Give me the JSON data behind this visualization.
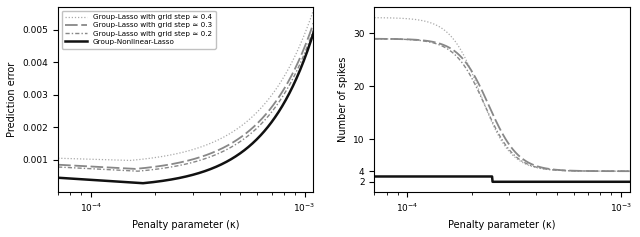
{
  "xlabel": "Penalty parameter (κ)",
  "ylabel_left": "Prediction error",
  "ylabel_right": "Number of spikes",
  "xlim": [
    7e-05,
    0.0011
  ],
  "ylim_left": [
    0.0,
    0.0057
  ],
  "ylim_right": [
    0,
    35
  ],
  "yticks_left": [
    0.001,
    0.002,
    0.003,
    0.004,
    0.005
  ],
  "yticks_right": [
    2,
    4,
    10,
    20,
    30
  ],
  "legend_labels": [
    "Group-Lasso with grid step ≃ 0.4",
    "Group-Lasso with grid step ≃ 0.3",
    "Group-Lasso with grid step ≃ 0.2",
    "Group-Nonlinear-Lasso"
  ],
  "bg_color": "#ffffff"
}
